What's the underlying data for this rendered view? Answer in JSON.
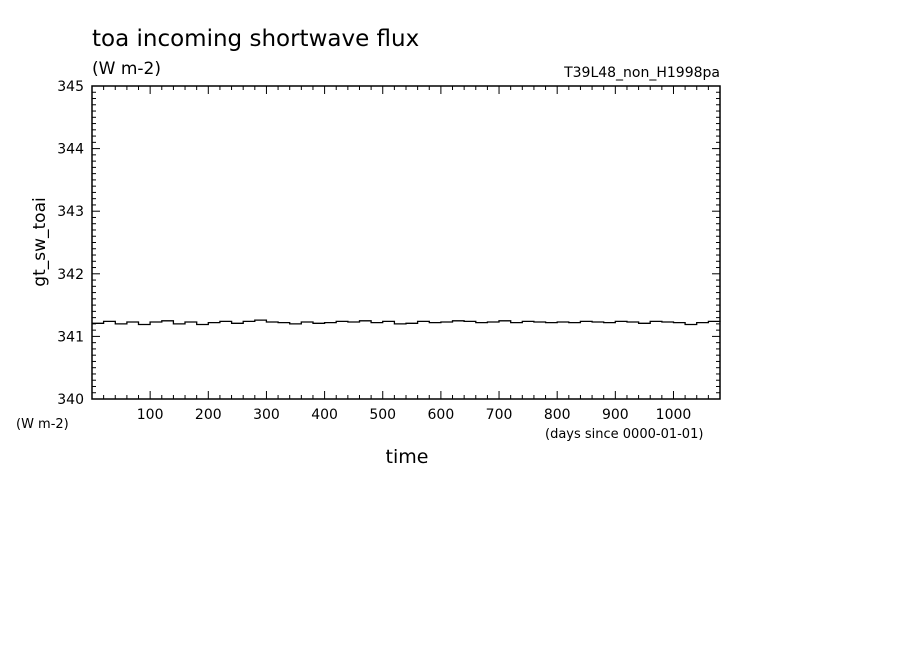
{
  "chart_data": {
    "type": "line",
    "title": "toa incoming shortwave flux",
    "subtitle_units": "(W m-2)",
    "run_label": "T39L48_non_H1998pa",
    "xlabel": "time",
    "xunits": "(days since 0000-01-01)",
    "ylabel": "gt_sw_toai",
    "yunits": "(W m-2)",
    "xlim": [
      0,
      1080
    ],
    "ylim": [
      340,
      345
    ],
    "x_ticks": [
      100,
      200,
      300,
      400,
      500,
      600,
      700,
      800,
      900,
      1000
    ],
    "y_ticks": [
      340,
      341,
      342,
      343,
      344,
      345
    ],
    "grid": false,
    "series": [
      {
        "x": [
          0,
          20,
          40,
          60,
          80,
          100,
          120,
          140,
          160,
          180,
          200,
          220,
          240,
          260,
          280,
          300,
          320,
          340,
          360,
          380,
          400,
          420,
          440,
          460,
          480,
          500,
          520,
          540,
          560,
          580,
          600,
          620,
          640,
          660,
          680,
          700,
          720,
          740,
          760,
          780,
          800,
          820,
          840,
          860,
          880,
          900,
          920,
          940,
          960,
          980,
          1000,
          1020,
          1040,
          1060,
          1080
        ],
        "values": [
          341.21,
          341.24,
          341.2,
          341.23,
          341.19,
          341.23,
          341.25,
          341.2,
          341.23,
          341.19,
          341.22,
          341.24,
          341.21,
          341.24,
          341.26,
          341.23,
          341.22,
          341.2,
          341.23,
          341.21,
          341.22,
          341.24,
          341.23,
          341.25,
          341.22,
          341.24,
          341.2,
          341.21,
          341.24,
          341.22,
          341.23,
          341.25,
          341.24,
          341.22,
          341.23,
          341.25,
          341.22,
          341.24,
          341.23,
          341.22,
          341.23,
          341.22,
          341.24,
          341.23,
          341.22,
          341.24,
          341.23,
          341.21,
          341.24,
          341.23,
          341.22,
          341.19,
          341.22,
          341.24,
          341.23
        ]
      }
    ]
  }
}
